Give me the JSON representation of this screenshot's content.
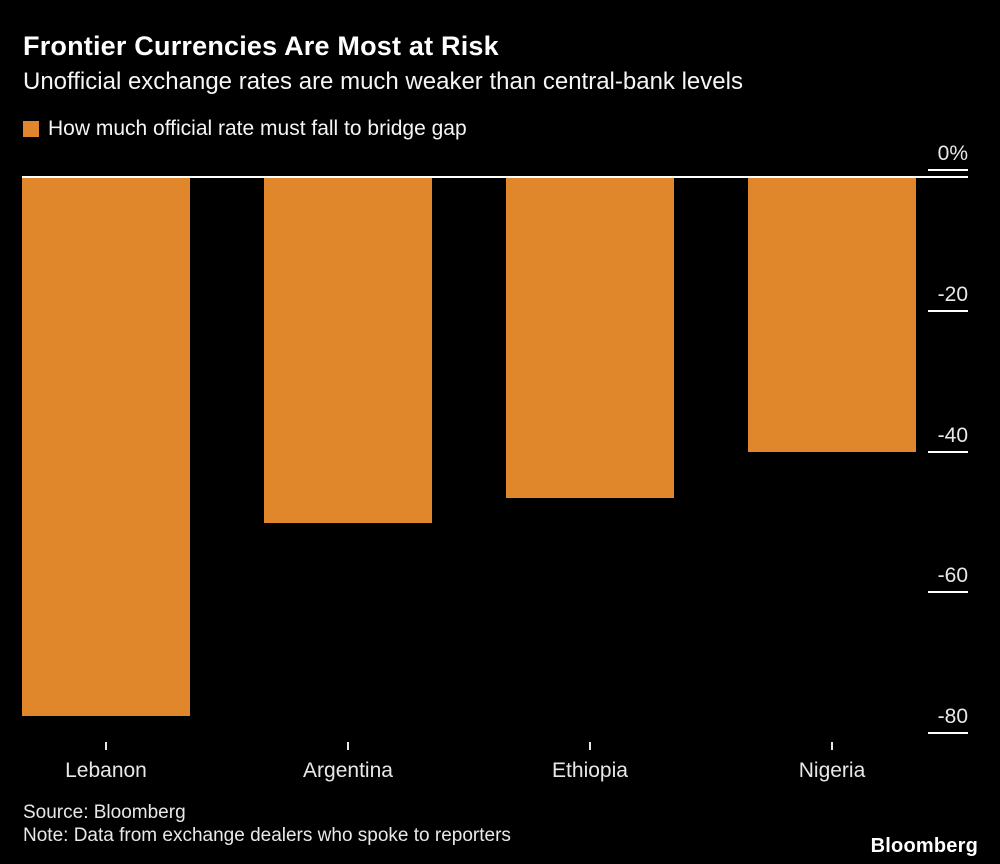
{
  "header": {
    "title": "Frontier Currencies Are Most at Risk",
    "subtitle": "Unofficial exchange rates are much weaker than central-bank levels"
  },
  "legend": {
    "label": "How much official rate must fall to bridge gap",
    "swatch_color": "#E0872B"
  },
  "chart_data": {
    "type": "bar",
    "title": "Frontier Currencies Are Most at Risk",
    "subtitle": "Unofficial exchange rates are much weaker than central-bank levels",
    "series_name": "How much official rate must fall to bridge gap",
    "categories": [
      "Lebanon",
      "Argentina",
      "Ethiopia",
      "Nigeria"
    ],
    "values": [
      -76.5,
      -49,
      -45.5,
      -39
    ],
    "unit": "%",
    "ylim": [
      0,
      -80
    ],
    "yticks": [
      0,
      -20,
      -40,
      -60,
      -80
    ],
    "ytick_labels": [
      "0%",
      "-20",
      "-40",
      "-60",
      "-80"
    ],
    "bar_color": "#E0872B",
    "axis_side": "right",
    "grid": "right-tick-stubs",
    "legend_position": "top-left",
    "background": "#000000"
  },
  "footer": {
    "source": "Source: Bloomberg",
    "note": "Note: Data from exchange dealers who spoke to reporters",
    "logo": "Bloomberg"
  },
  "colors": {
    "background": "#000000",
    "text": "#FFFFFF",
    "accent": "#E0872B"
  }
}
